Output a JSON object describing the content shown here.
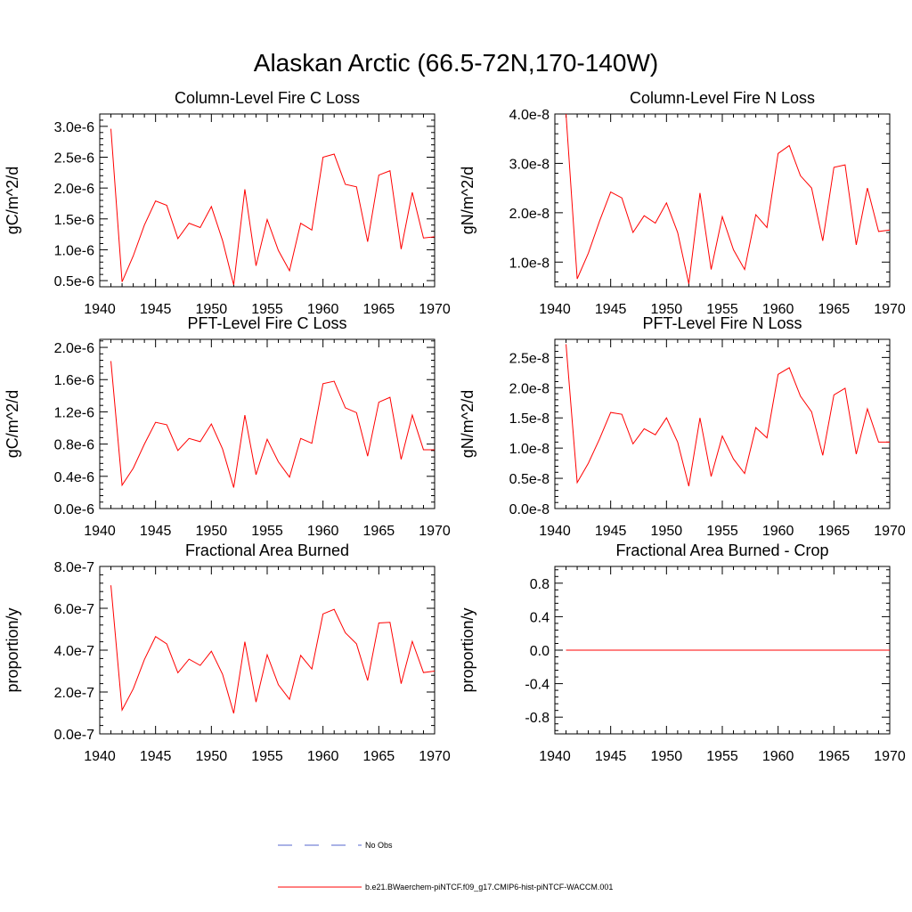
{
  "figure_title": "Alaskan Arctic (66.5-72N,170-140W)",
  "legend": [
    {
      "label": "No Obs",
      "color": "#5566cc",
      "style": "dashed"
    },
    {
      "label": "b.e21.BWaerchem-piNTCF.f09_g17.CMIP6-hist-piNTCF-WACCM.001",
      "color": "#ff0000",
      "style": "solid"
    }
  ],
  "chart_data": [
    {
      "type": "line",
      "title": "Column-Level Fire C Loss",
      "ylabel": "gC/m^2/d",
      "xlim": [
        1940,
        1970
      ],
      "ylim": [
        4e-07,
        3.2e-06
      ],
      "yticks": [
        5e-07,
        1e-06,
        1.5e-06,
        2e-06,
        2.5e-06,
        3e-06
      ],
      "ytick_labels": [
        "0.5e-6",
        "1.0e-6",
        "1.5e-6",
        "2.0e-6",
        "2.5e-6",
        "3.0e-6"
      ],
      "xticks": [
        1940,
        1945,
        1950,
        1955,
        1960,
        1965,
        1970
      ],
      "xtick_labels": [
        "1940",
        "1945",
        "1950",
        "1955",
        "1960",
        "1965",
        "1970"
      ],
      "x": [
        1941,
        1942,
        1943,
        1944,
        1945,
        1946,
        1947,
        1948,
        1949,
        1950,
        1951,
        1952,
        1953,
        1954,
        1955,
        1956,
        1957,
        1958,
        1959,
        1960,
        1961,
        1962,
        1963,
        1964,
        1965,
        1966,
        1967,
        1968,
        1969,
        1970
      ],
      "series": [
        {
          "color": "#ff0000",
          "values": [
            2.96e-06,
            4.8e-07,
            9e-07,
            1.4e-06,
            1.79e-06,
            1.72e-06,
            1.18e-06,
            1.43e-06,
            1.36e-06,
            1.7e-06,
            1.15e-06,
            4.3e-07,
            1.98e-06,
            7.4e-07,
            1.49e-06,
            9.9e-07,
            6.6e-07,
            1.43e-06,
            1.32e-06,
            2.5e-06,
            2.55e-06,
            2.06e-06,
            2.02e-06,
            1.13e-06,
            2.21e-06,
            2.28e-06,
            1.01e-06,
            1.93e-06,
            1.19e-06,
            1.21e-06
          ]
        }
      ]
    },
    {
      "type": "line",
      "title": "Column-Level Fire N Loss",
      "ylabel": "gN/m^2/d",
      "xlim": [
        1940,
        1970
      ],
      "ylim": [
        5e-09,
        4e-08
      ],
      "yticks": [
        1e-08,
        2e-08,
        3e-08,
        4e-08
      ],
      "ytick_labels": [
        "1.0e-8",
        "2.0e-8",
        "3.0e-8",
        "4.0e-8"
      ],
      "xticks": [
        1940,
        1945,
        1950,
        1955,
        1960,
        1965,
        1970
      ],
      "xtick_labels": [
        "1940",
        "1945",
        "1950",
        "1955",
        "1960",
        "1965",
        "1970"
      ],
      "x": [
        1941,
        1942,
        1943,
        1944,
        1945,
        1946,
        1947,
        1948,
        1949,
        1950,
        1951,
        1952,
        1953,
        1954,
        1955,
        1956,
        1957,
        1958,
        1959,
        1960,
        1961,
        1962,
        1963,
        1964,
        1965,
        1966,
        1967,
        1968,
        1969,
        1970
      ],
      "series": [
        {
          "color": "#ff0000",
          "values": [
            4e-08,
            6.6e-09,
            1.18e-08,
            1.83e-08,
            2.42e-08,
            2.3e-08,
            1.6e-08,
            1.94e-08,
            1.79e-08,
            2.2e-08,
            1.6e-08,
            5.6e-09,
            2.4e-08,
            8.5e-09,
            1.92e-08,
            1.25e-08,
            8.5e-09,
            1.96e-08,
            1.7e-08,
            3.2e-08,
            3.36e-08,
            2.75e-08,
            2.5e-08,
            1.43e-08,
            2.92e-08,
            2.97e-08,
            1.35e-08,
            2.5e-08,
            1.62e-08,
            1.65e-08
          ]
        }
      ]
    },
    {
      "type": "line",
      "title": "PFT-Level Fire C Loss",
      "ylabel": "gC/m^2/d",
      "xlim": [
        1940,
        1970
      ],
      "ylim": [
        0.0,
        2.1e-06
      ],
      "yticks": [
        0.0,
        4e-07,
        8e-07,
        1.2e-06,
        1.6e-06,
        2e-06
      ],
      "ytick_labels": [
        "0.0e-6",
        "0.4e-6",
        "0.8e-6",
        "1.2e-6",
        "1.6e-6",
        "2.0e-6"
      ],
      "xticks": [
        1940,
        1945,
        1950,
        1955,
        1960,
        1965,
        1970
      ],
      "xtick_labels": [
        "1940",
        "1945",
        "1950",
        "1955",
        "1960",
        "1965",
        "1970"
      ],
      "x": [
        1941,
        1942,
        1943,
        1944,
        1945,
        1946,
        1947,
        1948,
        1949,
        1950,
        1951,
        1952,
        1953,
        1954,
        1955,
        1956,
        1957,
        1958,
        1959,
        1960,
        1961,
        1962,
        1963,
        1964,
        1965,
        1966,
        1967,
        1968,
        1969,
        1970
      ],
      "series": [
        {
          "color": "#ff0000",
          "values": [
            1.83e-06,
            2.9e-07,
            5e-07,
            8e-07,
            1.07e-06,
            1.04e-06,
            7.2e-07,
            8.7e-07,
            8.3e-07,
            1.05e-06,
            7.4e-07,
            2.6e-07,
            1.16e-06,
            4.2e-07,
            8.6e-07,
            5.8e-07,
            3.9e-07,
            8.7e-07,
            8.1e-07,
            1.55e-06,
            1.58e-06,
            1.25e-06,
            1.19e-06,
            6.5e-07,
            1.32e-06,
            1.38e-06,
            6.1e-07,
            1.16e-06,
            7.3e-07,
            7.3e-07
          ]
        }
      ]
    },
    {
      "type": "line",
      "title": "PFT-Level Fire N Loss",
      "ylabel": "gN/m^2/d",
      "xlim": [
        1940,
        1970
      ],
      "ylim": [
        0.0,
        2.8e-08
      ],
      "yticks": [
        0.0,
        5e-09,
        1e-08,
        1.5e-08,
        2e-08,
        2.5e-08
      ],
      "ytick_labels": [
        "0.0e-8",
        "0.5e-8",
        "1.0e-8",
        "1.5e-8",
        "2.0e-8",
        "2.5e-8"
      ],
      "xticks": [
        1940,
        1945,
        1950,
        1955,
        1960,
        1965,
        1970
      ],
      "xtick_labels": [
        "1940",
        "1945",
        "1950",
        "1955",
        "1960",
        "1965",
        "1970"
      ],
      "x": [
        1941,
        1942,
        1943,
        1944,
        1945,
        1946,
        1947,
        1948,
        1949,
        1950,
        1951,
        1952,
        1953,
        1954,
        1955,
        1956,
        1957,
        1958,
        1959,
        1960,
        1961,
        1962,
        1963,
        1964,
        1965,
        1966,
        1967,
        1968,
        1969,
        1970
      ],
      "series": [
        {
          "color": "#ff0000",
          "values": [
            2.72e-08,
            4.3e-09,
            7.5e-09,
            1.15e-08,
            1.59e-08,
            1.56e-08,
            1.07e-08,
            1.32e-08,
            1.22e-08,
            1.5e-08,
            1.1e-08,
            3.7e-09,
            1.5e-08,
            5.3e-09,
            1.2e-08,
            8.2e-09,
            5.8e-09,
            1.34e-08,
            1.17e-08,
            2.22e-08,
            2.33e-08,
            1.86e-08,
            1.6e-08,
            8.8e-09,
            1.88e-08,
            1.99e-08,
            9e-09,
            1.65e-08,
            1.1e-08,
            1.1e-08
          ]
        }
      ]
    },
    {
      "type": "line",
      "title": "Fractional Area Burned",
      "ylabel": "proportion/y",
      "xlim": [
        1940,
        1970
      ],
      "ylim": [
        0.0,
        8e-07
      ],
      "yticks": [
        0.0,
        2e-07,
        4e-07,
        6e-07,
        8e-07
      ],
      "ytick_labels": [
        "0.0e-7",
        "2.0e-7",
        "4.0e-7",
        "6.0e-7",
        "8.0e-7"
      ],
      "xticks": [
        1940,
        1945,
        1950,
        1955,
        1960,
        1965,
        1970
      ],
      "xtick_labels": [
        "1940",
        "1945",
        "1950",
        "1955",
        "1960",
        "1965",
        "1970"
      ],
      "x": [
        1941,
        1942,
        1943,
        1944,
        1945,
        1946,
        1947,
        1948,
        1949,
        1950,
        1951,
        1952,
        1953,
        1954,
        1955,
        1956,
        1957,
        1958,
        1959,
        1960,
        1961,
        1962,
        1963,
        1964,
        1965,
        1966,
        1967,
        1968,
        1969,
        1970
      ],
      "series": [
        {
          "color": "#ff0000",
          "values": [
            7.1e-07,
            1.14e-07,
            2.15e-07,
            3.55e-07,
            4.65e-07,
            4.3e-07,
            2.92e-07,
            3.57e-07,
            3.27e-07,
            3.95e-07,
            2.85e-07,
            9.8e-08,
            4.4e-07,
            1.52e-07,
            3.78e-07,
            2.35e-07,
            1.65e-07,
            3.75e-07,
            3.1e-07,
            5.73e-07,
            5.95e-07,
            4.83e-07,
            4.3e-07,
            2.55e-07,
            5.3e-07,
            5.33e-07,
            2.4e-07,
            4.42e-07,
            2.93e-07,
            3e-07
          ]
        }
      ]
    },
    {
      "type": "line",
      "title": "Fractional Area Burned - Crop",
      "ylabel": "proportion/y",
      "xlim": [
        1940,
        1970
      ],
      "ylim": [
        -1.0,
        1.0
      ],
      "yticks": [
        -0.8,
        -0.4,
        0.0,
        0.4,
        0.8
      ],
      "ytick_labels": [
        "-0.8",
        "-0.4",
        "0.0",
        "0.4",
        "0.8"
      ],
      "xticks": [
        1940,
        1945,
        1950,
        1955,
        1960,
        1965,
        1970
      ],
      "xtick_labels": [
        "1940",
        "1945",
        "1950",
        "1955",
        "1960",
        "1965",
        "1970"
      ],
      "x": [
        1941,
        1942,
        1943,
        1944,
        1945,
        1946,
        1947,
        1948,
        1949,
        1950,
        1951,
        1952,
        1953,
        1954,
        1955,
        1956,
        1957,
        1958,
        1959,
        1960,
        1961,
        1962,
        1963,
        1964,
        1965,
        1966,
        1967,
        1968,
        1969,
        1970
      ],
      "series": [
        {
          "color": "#ff0000",
          "values": [
            0,
            0,
            0,
            0,
            0,
            0,
            0,
            0,
            0,
            0,
            0,
            0,
            0,
            0,
            0,
            0,
            0,
            0,
            0,
            0,
            0,
            0,
            0,
            0,
            0,
            0,
            0,
            0,
            0,
            0
          ]
        }
      ]
    }
  ]
}
